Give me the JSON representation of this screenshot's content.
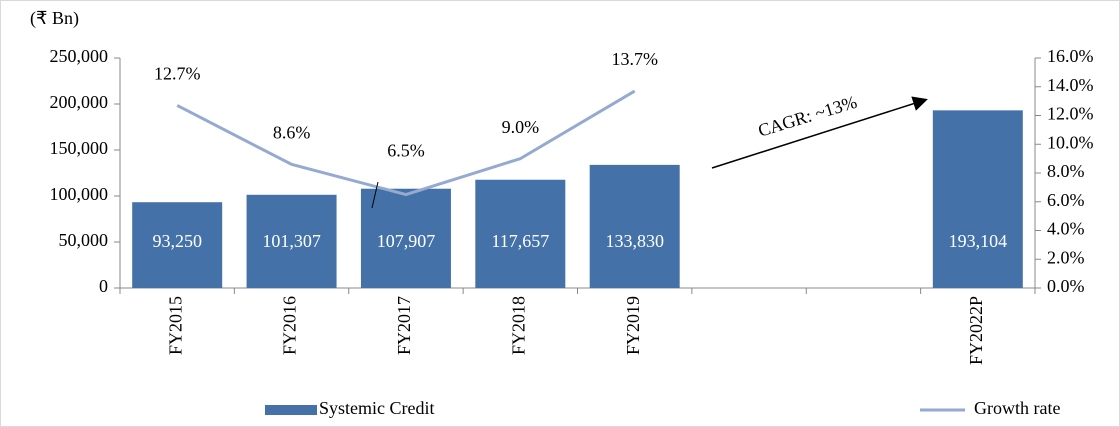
{
  "chart_data": {
    "type": "bar",
    "unit_label": "(₹ Bn)",
    "annotation": "CAGR: ~13%",
    "categories": [
      "FY2015",
      "FY2016",
      "FY2017",
      "FY2018",
      "FY2019",
      null,
      null,
      "FY2022P"
    ],
    "series": [
      {
        "name": "Systemic Credit",
        "type": "bar",
        "color": "#4472a8",
        "values": [
          93250,
          101307,
          107907,
          117657,
          133830,
          null,
          null,
          193104
        ],
        "value_labels": [
          "93,250",
          "101,307",
          "107,907",
          "117,657",
          "133,830",
          null,
          null,
          "193,104"
        ]
      },
      {
        "name": "Growth rate",
        "type": "line",
        "axis": "y2",
        "color": "#95aad0",
        "values": [
          12.7,
          8.6,
          6.5,
          9.0,
          13.7,
          null,
          null,
          null
        ],
        "value_labels": [
          "12.7%",
          "8.6%",
          "6.5%",
          "9.0%",
          "13.7%",
          null,
          null,
          null
        ]
      }
    ],
    "ylim": [
      0,
      250000
    ],
    "yticks": [
      0,
      {
        "value": 50000,
        "label": "50,000"
      },
      {
        "value": 100000,
        "label": "100,000"
      },
      {
        "value": 150000,
        "label": "150,000"
      },
      {
        "value": 200000,
        "label": "200,000"
      },
      {
        "value": 250000,
        "label": "250,000"
      }
    ],
    "y2lim": [
      0,
      16
    ],
    "y2ticks": [
      {
        "value": 0,
        "label": "0.0%"
      },
      {
        "value": 2,
        "label": "2.0%"
      },
      {
        "value": 4,
        "label": "4.0%"
      },
      {
        "value": 6,
        "label": "6.0%"
      },
      {
        "value": 8,
        "label": "8.0%"
      },
      {
        "value": 10,
        "label": "10.0%"
      },
      {
        "value": 12,
        "label": "12.0%"
      },
      {
        "value": 14,
        "label": "14.0%"
      },
      {
        "value": 16,
        "label": "16.0%"
      }
    ],
    "legend": "bottom"
  }
}
